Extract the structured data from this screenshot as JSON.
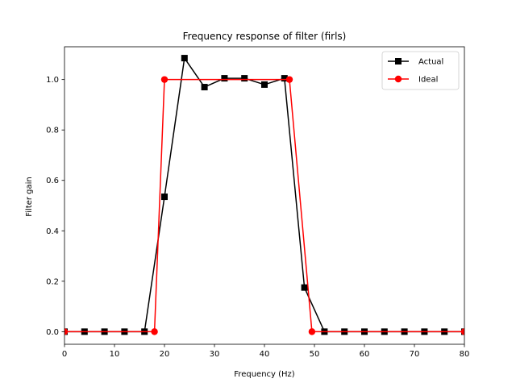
{
  "chart_data": {
    "type": "line",
    "title": "Frequency response of filter (firls)",
    "xlabel": "Frequency (Hz)",
    "ylabel": "Filter gain",
    "xlim": [
      0,
      80
    ],
    "ylim": [
      -0.05,
      1.13
    ],
    "xticks": [
      0,
      10,
      20,
      30,
      40,
      50,
      60,
      70,
      80
    ],
    "yticks": [
      0.0,
      0.2,
      0.4,
      0.6,
      0.8,
      1.0
    ],
    "grid": false,
    "legend": "top-right",
    "series": [
      {
        "name": "Actual",
        "color": "#000000",
        "marker": "square",
        "x": [
          0,
          4,
          8,
          12,
          16,
          20,
          24,
          28,
          32,
          36,
          40,
          44,
          48,
          52,
          56,
          60,
          64,
          68,
          72,
          76,
          80
        ],
        "y": [
          0.0,
          0.0,
          0.0,
          0.0,
          0.0,
          0.535,
          1.085,
          0.97,
          1.005,
          1.005,
          0.98,
          1.005,
          0.175,
          0.0,
          0.0,
          0.0,
          0.0,
          0.0,
          0.0,
          0.0,
          0.0
        ]
      },
      {
        "name": "Ideal",
        "color": "#ff0000",
        "marker": "circle",
        "x": [
          0,
          18,
          20,
          45,
          49.5,
          80
        ],
        "y": [
          0.0,
          0.0,
          1.0,
          1.0,
          0.0,
          0.0
        ]
      }
    ]
  }
}
